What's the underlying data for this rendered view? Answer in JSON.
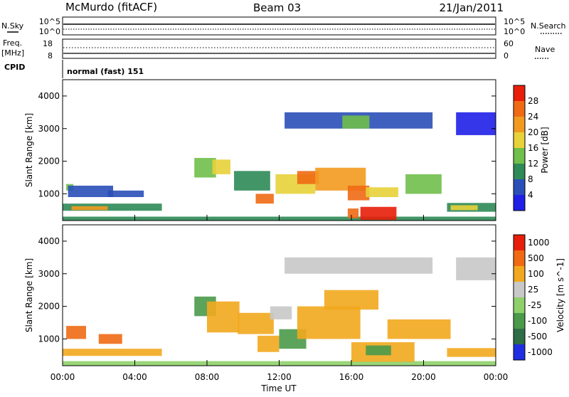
{
  "header": {
    "station": "McMurdo (fitACF)",
    "beam": "Beam 03",
    "date": "21/Jan/2011"
  },
  "noise_panel": {
    "left_label": "N.Sky",
    "right_label": "N.Search",
    "left_ticks": [
      "10^5",
      "10^0"
    ],
    "right_ticks": [
      "10^5",
      "10^0"
    ]
  },
  "freq_panel": {
    "left_label_1": "Freq.",
    "left_label_2": "[MHz]",
    "right_label": "Nave",
    "left_ticks": [
      "18",
      "8"
    ],
    "right_ticks": [
      "60",
      "0"
    ]
  },
  "cpid": {
    "label": "CPID",
    "value": "normal (fast) 151"
  },
  "x_axis": {
    "label": "Time UT",
    "ticks": [
      "00:00",
      "04:00",
      "08:00",
      "12:00",
      "16:00",
      "20:00",
      "00:00"
    ]
  },
  "chart_data": [
    {
      "type": "heatmap",
      "title": "",
      "xlabel": "Time UT",
      "ylabel": "Slant Range [km]",
      "xlim": [
        0,
        24
      ],
      "ylim": [
        180,
        4500
      ],
      "yticks": [
        "1000",
        "2000",
        "3000",
        "4000"
      ],
      "colorbar": {
        "label": "Power [dB]",
        "ticks": [
          "4",
          "8",
          "12",
          "16",
          "20",
          "24",
          "28"
        ],
        "colors": [
          "#1f1fe8",
          "#2a4fb8",
          "#2e8a57",
          "#6fbf4a",
          "#e8d23a",
          "#f29a1f",
          "#f06a14",
          "#e81e0a"
        ]
      },
      "regions": [
        {
          "t0": 0.0,
          "t1": 5.5,
          "r0": 480,
          "r1": 700,
          "level": 2
        },
        {
          "t0": 0.5,
          "t1": 2.5,
          "r0": 500,
          "r1": 620,
          "level": 5
        },
        {
          "t0": 0.2,
          "t1": 0.6,
          "r0": 1100,
          "r1": 1300,
          "level": 3
        },
        {
          "t0": 0.3,
          "t1": 2.8,
          "r0": 900,
          "r1": 1250,
          "level": 1
        },
        {
          "t0": 2.5,
          "t1": 4.5,
          "r0": 900,
          "r1": 1100,
          "level": 1
        },
        {
          "t0": 0.0,
          "t1": 24.0,
          "r0": 180,
          "r1": 300,
          "level": 2
        },
        {
          "t0": 7.3,
          "t1": 8.5,
          "r0": 1500,
          "r1": 2100,
          "level": 3
        },
        {
          "t0": 8.3,
          "t1": 9.3,
          "r0": 1600,
          "r1": 2050,
          "level": 4
        },
        {
          "t0": 9.5,
          "t1": 11.5,
          "r0": 1100,
          "r1": 1700,
          "level": 2
        },
        {
          "t0": 10.7,
          "t1": 11.7,
          "r0": 700,
          "r1": 1000,
          "level": 6
        },
        {
          "t0": 11.8,
          "t1": 14.0,
          "r0": 1000,
          "r1": 1600,
          "level": 4
        },
        {
          "t0": 13.0,
          "t1": 14.2,
          "r0": 1300,
          "r1": 1700,
          "level": 6
        },
        {
          "t0": 14.0,
          "t1": 16.8,
          "r0": 1100,
          "r1": 1800,
          "level": 5
        },
        {
          "t0": 15.8,
          "t1": 17.0,
          "r0": 800,
          "r1": 1250,
          "level": 6
        },
        {
          "t0": 16.8,
          "t1": 18.6,
          "r0": 900,
          "r1": 1200,
          "level": 4
        },
        {
          "t0": 12.3,
          "t1": 20.5,
          "r0": 3000,
          "r1": 3500,
          "level": 1
        },
        {
          "t0": 15.5,
          "t1": 17.0,
          "r0": 3000,
          "r1": 3400,
          "level": 3
        },
        {
          "t0": 16.5,
          "t1": 18.5,
          "r0": 200,
          "r1": 600,
          "level": 7
        },
        {
          "t0": 15.8,
          "t1": 16.4,
          "r0": 250,
          "r1": 550,
          "level": 6
        },
        {
          "t0": 19.0,
          "t1": 21.0,
          "r0": 1000,
          "r1": 1600,
          "level": 3
        },
        {
          "t0": 21.3,
          "t1": 24.0,
          "r0": 450,
          "r1": 720,
          "level": 2
        },
        {
          "t0": 21.5,
          "t1": 23.0,
          "r0": 500,
          "r1": 650,
          "level": 4
        },
        {
          "t0": 21.8,
          "t1": 24.0,
          "r0": 2800,
          "r1": 3500,
          "level": 0
        }
      ]
    },
    {
      "type": "heatmap",
      "title": "",
      "xlabel": "Time UT",
      "ylabel": "Slant Range [km]",
      "xlim": [
        0,
        24
      ],
      "ylim": [
        180,
        4500
      ],
      "yticks": [
        "1000",
        "2000",
        "3000",
        "4000"
      ],
      "colorbar": {
        "label": "Velocity [m s^-1]",
        "ticks": [
          "1000",
          "500",
          "100",
          "25",
          "-25",
          "-100",
          "-500",
          "-1000"
        ],
        "colors": [
          "#1f2ee0",
          "#2d6e46",
          "#4a9a4a",
          "#8fd06a",
          "#c8c8c8",
          "#f2a81e",
          "#f06a14",
          "#e81e0a"
        ]
      },
      "regions": [
        {
          "t0": 0.0,
          "t1": 5.5,
          "r0": 480,
          "r1": 700,
          "level": 5
        },
        {
          "t0": 0.2,
          "t1": 1.3,
          "r0": 1000,
          "r1": 1400,
          "level": 6
        },
        {
          "t0": 2.0,
          "t1": 3.3,
          "r0": 850,
          "r1": 1150,
          "level": 6
        },
        {
          "t0": 0.0,
          "t1": 24.0,
          "r0": 180,
          "r1": 320,
          "level": 3
        },
        {
          "t0": 7.3,
          "t1": 8.5,
          "r0": 1700,
          "r1": 2300,
          "level": 2
        },
        {
          "t0": 8.0,
          "t1": 9.8,
          "r0": 1200,
          "r1": 2150,
          "level": 5
        },
        {
          "t0": 9.7,
          "t1": 11.7,
          "r0": 1150,
          "r1": 1800,
          "level": 5
        },
        {
          "t0": 10.8,
          "t1": 12.0,
          "r0": 600,
          "r1": 1100,
          "level": 5
        },
        {
          "t0": 11.5,
          "t1": 12.7,
          "r0": 1600,
          "r1": 2000,
          "level": 4
        },
        {
          "t0": 12.0,
          "t1": 13.5,
          "r0": 700,
          "r1": 1300,
          "level": 2
        },
        {
          "t0": 13.0,
          "t1": 16.5,
          "r0": 1000,
          "r1": 2000,
          "level": 5
        },
        {
          "t0": 14.5,
          "t1": 17.5,
          "r0": 1900,
          "r1": 2500,
          "level": 5
        },
        {
          "t0": 16.0,
          "t1": 19.5,
          "r0": 300,
          "r1": 900,
          "level": 5
        },
        {
          "t0": 16.8,
          "t1": 18.2,
          "r0": 500,
          "r1": 800,
          "level": 2
        },
        {
          "t0": 18.0,
          "t1": 21.5,
          "r0": 1000,
          "r1": 1600,
          "level": 5
        },
        {
          "t0": 12.3,
          "t1": 20.5,
          "r0": 3000,
          "r1": 3500,
          "level": 4
        },
        {
          "t0": 21.3,
          "t1": 24.0,
          "r0": 450,
          "r1": 720,
          "level": 5
        },
        {
          "t0": 21.8,
          "t1": 24.0,
          "r0": 2800,
          "r1": 3500,
          "level": 4
        }
      ]
    }
  ]
}
